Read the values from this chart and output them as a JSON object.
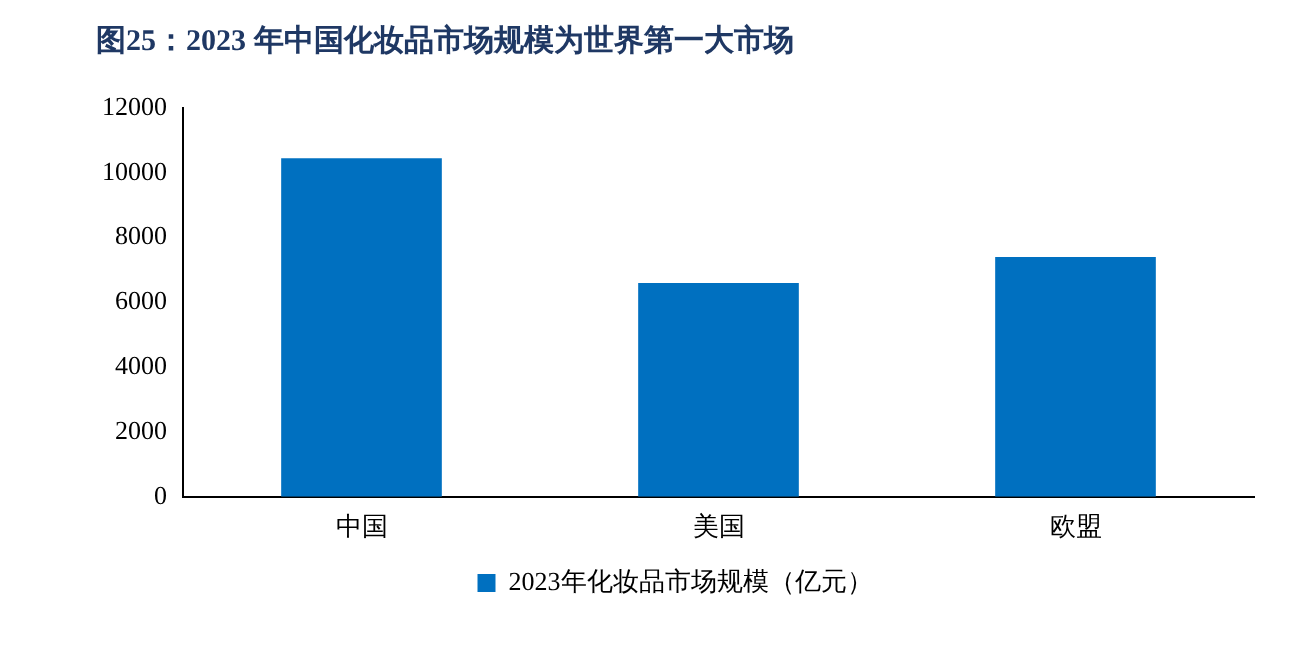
{
  "chart_data": {
    "type": "bar",
    "title": "图25：2023 年中国化妆品市场规模为世界第一大市场",
    "categories": [
      "中国",
      "美国",
      "欧盟"
    ],
    "series": [
      {
        "name": "2023年化妆品市场规模（亿元）",
        "color": "#0070c0",
        "values": [
          10450,
          6600,
          7400
        ]
      }
    ],
    "ylim": [
      0,
      12000
    ],
    "yticks": [
      0,
      2000,
      4000,
      6000,
      8000,
      10000,
      12000
    ],
    "grid": false,
    "legend": "bottom"
  }
}
